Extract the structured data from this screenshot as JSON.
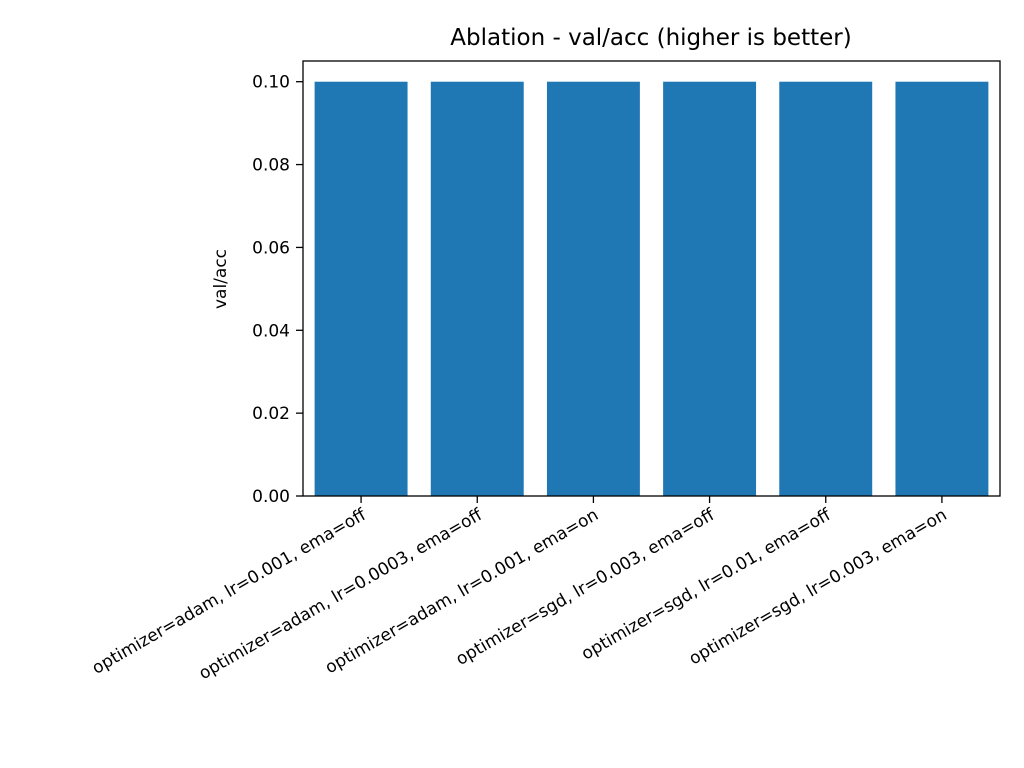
{
  "chart_data": {
    "type": "bar",
    "title": "Ablation - val/acc (higher is better)",
    "xlabel": "",
    "ylabel": "val/acc",
    "ylim": [
      0,
      0.105
    ],
    "yticks": [
      0.0,
      0.02,
      0.04,
      0.06,
      0.08,
      0.1
    ],
    "ytick_labels": [
      "0.00",
      "0.02",
      "0.04",
      "0.06",
      "0.08",
      "0.10"
    ],
    "categories": [
      "optimizer=adam, lr=0.001, ema=off",
      "optimizer=adam, lr=0.0003, ema=off",
      "optimizer=adam, lr=0.001, ema=on",
      "optimizer=sgd, lr=0.003, ema=off",
      "optimizer=sgd, lr=0.01, ema=off",
      "optimizer=sgd, lr=0.003, ema=on"
    ],
    "values": [
      0.1,
      0.1,
      0.1,
      0.1,
      0.1,
      0.1
    ],
    "bar_color": "#1f77b4",
    "grid": false,
    "legend": "none"
  }
}
